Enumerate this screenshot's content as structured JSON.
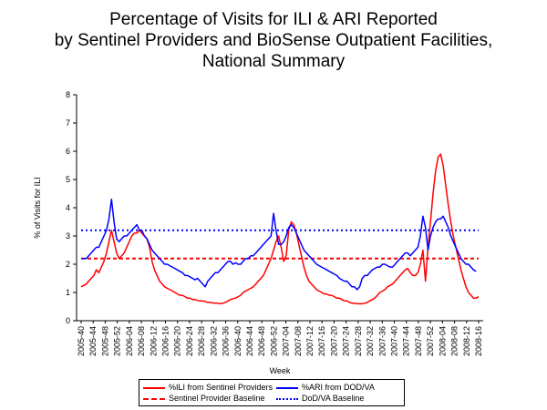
{
  "chart_data": {
    "type": "line",
    "title_lines": [
      "Percentage of Visits for ILI & ARI Reported",
      "by Sentinel Providers and BioSense Outpatient Facilities,",
      "National Summary"
    ],
    "xlabel": "Week",
    "ylabel": "% of Visits for ILI",
    "ylim": [
      0,
      8
    ],
    "yticks": [
      "0",
      "1",
      "2",
      "3",
      "4",
      "5",
      "6",
      "7",
      "8"
    ],
    "xticks": [
      "2005-40",
      "2005-44",
      "2005-48",
      "2005-52",
      "2006-04",
      "2006-08",
      "2006-12",
      "2006-16",
      "2006-20",
      "2006-24",
      "2006-28",
      "2006-32",
      "2006-36",
      "2006-40",
      "2006-44",
      "2006-48",
      "2006-52",
      "2007-04",
      "2007-08",
      "2007-12",
      "2007-16",
      "2007-20",
      "2007-24",
      "2007-28",
      "2007-32",
      "2007-36",
      "2007-40",
      "2007-44",
      "2007-48",
      "2007-52",
      "2008-04",
      "2008-08",
      "2008-12",
      "2008-16"
    ],
    "grid": false,
    "legend_position": "bottom",
    "series": [
      {
        "name": "%ILI from Sentinel Providers",
        "color": "#ff0000",
        "style": "solid",
        "values": [
          1.2,
          1.25,
          1.3,
          1.4,
          1.5,
          1.6,
          1.8,
          1.7,
          1.9,
          2.1,
          2.4,
          2.8,
          3.2,
          2.8,
          2.4,
          2.2,
          2.3,
          2.4,
          2.6,
          2.8,
          3.0,
          3.1,
          3.1,
          3.2,
          3.1,
          3.0,
          2.9,
          2.6,
          2.1,
          1.8,
          1.6,
          1.4,
          1.3,
          1.2,
          1.15,
          1.1,
          1.05,
          1.0,
          0.95,
          0.9,
          0.9,
          0.85,
          0.8,
          0.8,
          0.75,
          0.75,
          0.72,
          0.7,
          0.7,
          0.68,
          0.65,
          0.65,
          0.63,
          0.62,
          0.62,
          0.6,
          0.62,
          0.65,
          0.7,
          0.75,
          0.78,
          0.8,
          0.85,
          0.9,
          1.0,
          1.05,
          1.1,
          1.15,
          1.2,
          1.3,
          1.4,
          1.5,
          1.6,
          1.8,
          2.0,
          2.2,
          2.5,
          2.8,
          3.0,
          2.6,
          2.1,
          2.3,
          3.2,
          3.5,
          3.4,
          3.1,
          2.7,
          2.3,
          1.9,
          1.6,
          1.4,
          1.3,
          1.2,
          1.1,
          1.05,
          1.0,
          0.95,
          0.95,
          0.9,
          0.9,
          0.85,
          0.8,
          0.8,
          0.75,
          0.7,
          0.7,
          0.65,
          0.62,
          0.62,
          0.6,
          0.6,
          0.6,
          0.62,
          0.65,
          0.7,
          0.75,
          0.8,
          0.9,
          1.0,
          1.05,
          1.1,
          1.2,
          1.25,
          1.3,
          1.4,
          1.5,
          1.6,
          1.7,
          1.8,
          1.85,
          1.7,
          1.6,
          1.6,
          1.7,
          2.0,
          2.5,
          1.4,
          2.6,
          3.5,
          4.5,
          5.3,
          5.8,
          5.9,
          5.5,
          4.8,
          4.1,
          3.5,
          3.0,
          2.6,
          2.2,
          1.8,
          1.5,
          1.2,
          1.0,
          0.9,
          0.8,
          0.8,
          0.85
        ]
      },
      {
        "name": "%ARI from DOD/VA",
        "color": "#0000ff",
        "style": "solid",
        "values": [
          2.2,
          2.2,
          2.2,
          2.3,
          2.4,
          2.5,
          2.6,
          2.6,
          2.8,
          3.0,
          3.2,
          3.6,
          4.3,
          3.5,
          2.9,
          2.8,
          2.9,
          3.0,
          3.0,
          3.1,
          3.2,
          3.3,
          3.4,
          3.2,
          3.2,
          3.0,
          2.9,
          2.7,
          2.5,
          2.4,
          2.3,
          2.2,
          2.1,
          2.0,
          2.0,
          1.95,
          1.9,
          1.85,
          1.8,
          1.75,
          1.7,
          1.6,
          1.6,
          1.55,
          1.5,
          1.45,
          1.5,
          1.4,
          1.3,
          1.2,
          1.4,
          1.5,
          1.6,
          1.7,
          1.7,
          1.8,
          1.9,
          2.0,
          2.1,
          2.1,
          2.0,
          2.05,
          2.0,
          2.0,
          2.1,
          2.2,
          2.2,
          2.3,
          2.3,
          2.4,
          2.5,
          2.6,
          2.7,
          2.8,
          2.9,
          3.0,
          3.8,
          3.2,
          2.7,
          2.7,
          2.8,
          3.0,
          3.3,
          3.4,
          3.3,
          3.1,
          2.9,
          2.7,
          2.5,
          2.4,
          2.3,
          2.2,
          2.1,
          2.0,
          1.95,
          1.9,
          1.85,
          1.8,
          1.75,
          1.7,
          1.65,
          1.6,
          1.5,
          1.45,
          1.4,
          1.4,
          1.3,
          1.2,
          1.2,
          1.1,
          1.2,
          1.5,
          1.6,
          1.6,
          1.7,
          1.8,
          1.85,
          1.9,
          1.9,
          2.0,
          2.0,
          1.95,
          1.9,
          1.9,
          2.0,
          2.1,
          2.2,
          2.3,
          2.4,
          2.4,
          2.3,
          2.4,
          2.5,
          2.6,
          3.0,
          3.7,
          3.3,
          2.5,
          3.0,
          3.3,
          3.5,
          3.6,
          3.6,
          3.7,
          3.5,
          3.3,
          3.0,
          2.8,
          2.6,
          2.4,
          2.2,
          2.1,
          2.0,
          2.0,
          1.9,
          1.8,
          1.75
        ]
      },
      {
        "name": "Sentinel Provider Baseline",
        "color": "#ff0000",
        "style": "dashed",
        "value": 2.2
      },
      {
        "name": "DoD/VA Baseline",
        "color": "#0000ff",
        "style": "dashed",
        "value": 3.2
      }
    ]
  }
}
